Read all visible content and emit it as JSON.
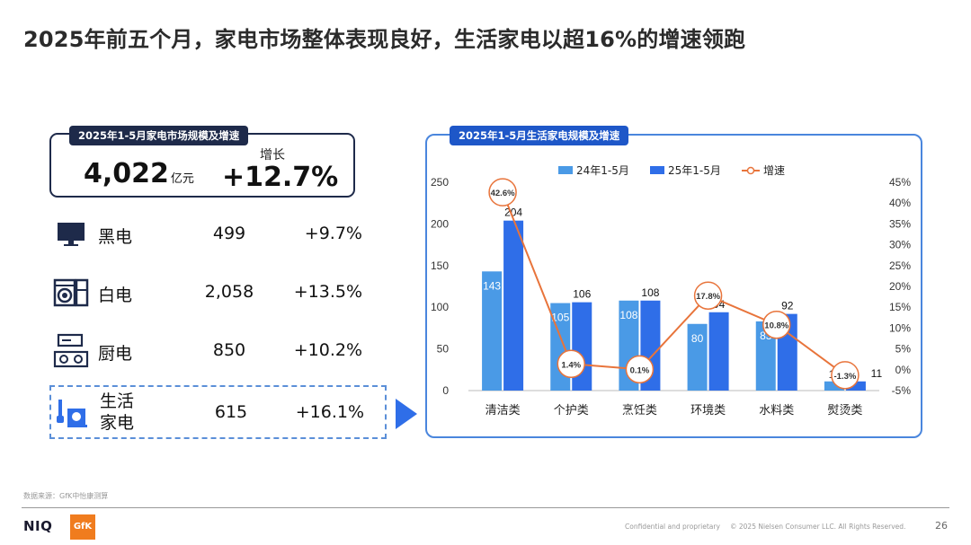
{
  "title": "2025年前五个月，家电市场整体表现良好，生活家电以超16%的增速领跑",
  "market": {
    "tag": "2025年1-5月家电市场规模及增速",
    "value": "4,022",
    "unit": "亿元",
    "growth_label": "增长",
    "growth": "+12.7%"
  },
  "categories": [
    {
      "name": "黑电",
      "value": "499",
      "growth": "+9.7%",
      "icon": "tv-icon"
    },
    {
      "name": "白电",
      "value": "2,058",
      "growth": "+13.5%",
      "icon": "washer-fridge-icon"
    },
    {
      "name": "厨电",
      "value": "850",
      "growth": "+10.2%",
      "icon": "stove-hood-icon"
    },
    {
      "name": "生活\n家电",
      "value": "615",
      "growth": "+16.1%",
      "icon": "small-appliance-icon"
    }
  ],
  "colors": {
    "bar_2024": "#4a9ae6",
    "bar_2025": "#2f6ee8",
    "growth_line": "#e8743b",
    "navy": "#1e2a4a",
    "accent": "#2f6ee8"
  },
  "chart_data": {
    "type": "bar",
    "title": "2025年1-5月生活家电规模及增速",
    "categories": [
      "清洁类",
      "个护类",
      "烹饪类",
      "环境类",
      "水料类",
      "熨烫类"
    ],
    "series": [
      {
        "name": "24年1-5月",
        "values": [
          143,
          105,
          108,
          80,
          83,
          11
        ],
        "labels": [
          "143",
          "105",
          "108",
          "80",
          "83",
          "11"
        ]
      },
      {
        "name": "25年1-5月",
        "values": [
          204,
          106,
          108,
          94,
          92,
          11
        ],
        "labels": [
          "204",
          "106",
          "108",
          "94",
          "92",
          "11"
        ]
      }
    ],
    "growth": {
      "name": "增速",
      "type": "line",
      "axis": "right",
      "values": [
        42.6,
        1.4,
        0.1,
        17.8,
        10.8,
        -1.3
      ],
      "labels": [
        "42.6%",
        "1.4%",
        "0.1%",
        "17.8%",
        "10.8%",
        "-1.3%"
      ]
    },
    "ylim_left": [
      0,
      250
    ],
    "yticks_left": [
      "0",
      "50",
      "100",
      "150",
      "200",
      "250"
    ],
    "ylim_right": [
      -5,
      45
    ],
    "yticks_right": [
      "-5%",
      "0%",
      "5%",
      "10%",
      "15%",
      "20%",
      "25%",
      "30%",
      "35%",
      "40%",
      "45%"
    ],
    "legend_position": "top-center",
    "grid": false
  },
  "footer": {
    "source": "数据来源：GfK中怡康测算",
    "logo_niq": "NIQ",
    "logo_gfk": "GfK",
    "confidential": "Confidential and proprietary",
    "copyright": "© 2025 Nielsen Consumer LLC. All Rights Reserved.",
    "page": "26"
  }
}
